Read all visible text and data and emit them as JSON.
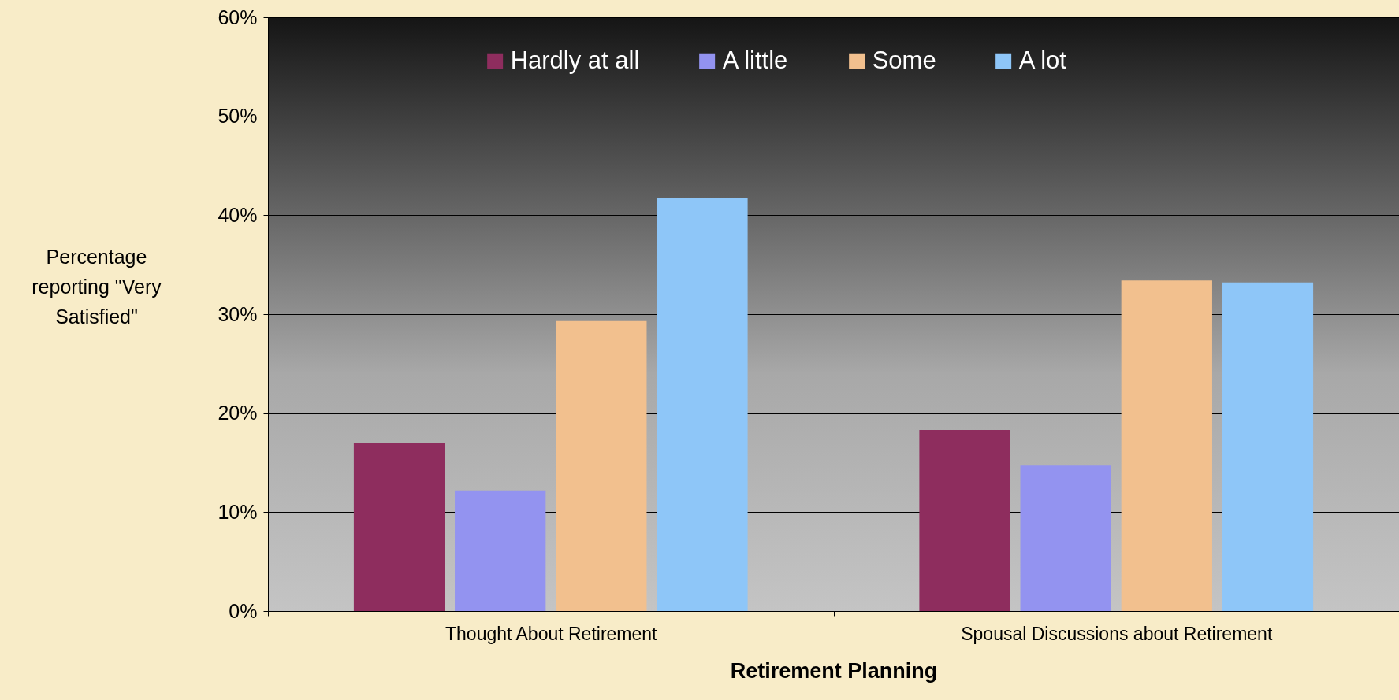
{
  "chart_data": {
    "type": "bar",
    "xlabel": "Retirement Planning",
    "ylabel": "Percentage reporting \"Very Satisfied\"",
    "categories": [
      "Thought About Retirement",
      "Spousal Discussions about Retirement"
    ],
    "series": [
      {
        "name": "Hardly at all",
        "color": "#8e2d5e",
        "values": [
          17,
          18.3
        ]
      },
      {
        "name": "A little",
        "color": "#9393f0",
        "values": [
          12.2,
          14.7
        ]
      },
      {
        "name": "Some",
        "color": "#f2c08e",
        "values": [
          29.3,
          33.4
        ]
      },
      {
        "name": "A lot",
        "color": "#8ec6f8",
        "values": [
          41.7,
          33.2
        ]
      }
    ],
    "ylim": [
      0,
      60
    ],
    "yticks": [
      {
        "value": 0,
        "label": "0%"
      },
      {
        "value": 10,
        "label": "10%"
      },
      {
        "value": 20,
        "label": "20%"
      },
      {
        "value": 30,
        "label": "30%"
      },
      {
        "value": 40,
        "label": "40%"
      },
      {
        "value": 50,
        "label": "50%"
      },
      {
        "value": 60,
        "label": "60%"
      }
    ],
    "grid": "y",
    "legend": "top"
  }
}
